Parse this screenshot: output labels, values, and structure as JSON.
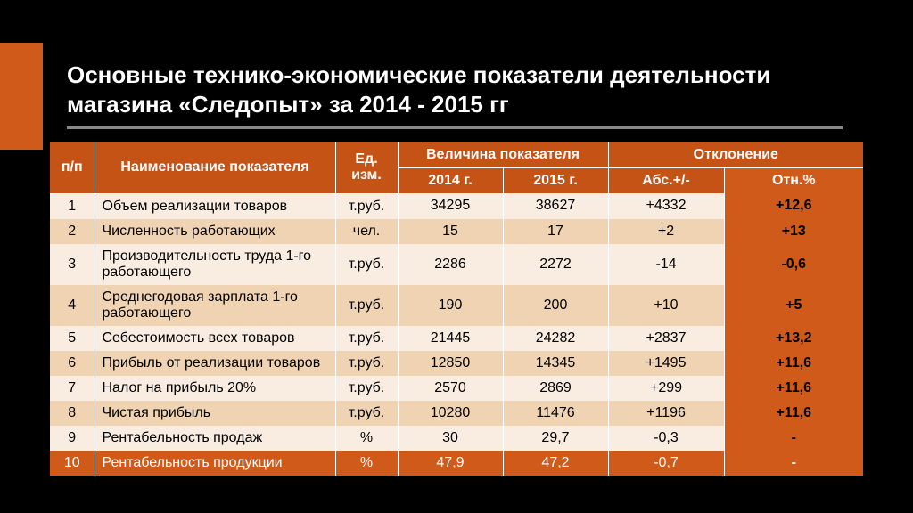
{
  "title": "Основные технико-экономические показатели деятельности магазина «Следопыт» за  2014 - 2015 гг",
  "header": {
    "pp": "п/п",
    "name": "Наименование показателя",
    "unit": "Ед. изм.",
    "value_group": "Величина показателя",
    "deviation_group": "Отклонение",
    "year1": "2014 г.",
    "year2": "2015 г.",
    "abs": "Абс.+/-",
    "otn": "Отн.%"
  },
  "rows": [
    {
      "pp": "1",
      "name": "Объем реализации товаров",
      "unit": "т.руб.",
      "y1": "34295",
      "y2": "38627",
      "abs": "+4332",
      "otn": "+12,6",
      "stripe": "light"
    },
    {
      "pp": "2",
      "name": "Численность работающих",
      "unit": "чел.",
      "y1": "15",
      "y2": "17",
      "abs": "+2",
      "otn": "+13",
      "stripe": "dark"
    },
    {
      "pp": "3",
      "name": "Производительность труда 1-го работающего",
      "unit": "т.руб.",
      "y1": "2286",
      "y2": "2272",
      "abs": "-14",
      "otn": "-0,6",
      "stripe": "light"
    },
    {
      "pp": "4",
      "name": "Среднегодовая зарплата 1-го работающего",
      "unit": "т.руб.",
      "y1": "190",
      "y2": "200",
      "abs": "+10",
      "otn": "+5",
      "stripe": "dark"
    },
    {
      "pp": "5",
      "name": "Себестоимость всех товаров",
      "unit": "т.руб.",
      "y1": "21445",
      "y2": "24282",
      "abs": "+2837",
      "otn": "+13,2",
      "stripe": "light"
    },
    {
      "pp": "6",
      "name": "Прибыль от реализации товаров",
      "unit": "т.руб.",
      "y1": "12850",
      "y2": "14345",
      "abs": "+1495",
      "otn": "+11,6",
      "stripe": "dark"
    },
    {
      "pp": "7",
      "name": "Налог на прибыль 20%",
      "unit": "т.руб.",
      "y1": "2570",
      "y2": "2869",
      "abs": "+299",
      "otn": "+11,6",
      "stripe": "light"
    },
    {
      "pp": "8",
      "name": "Чистая прибыль",
      "unit": "т.руб.",
      "y1": "10280",
      "y2": "11476",
      "abs": "+1196",
      "otn": "+11,6",
      "stripe": "dark"
    },
    {
      "pp": "9",
      "name": "Рентабельность продаж",
      "unit": "%",
      "y1": "30",
      "y2": "29,7",
      "abs": "-0,3",
      "otn": "-",
      "stripe": "light"
    },
    {
      "pp": "10",
      "name": "Рентабельность продукции",
      "unit": "%",
      "y1": "47,9",
      "y2": "47,2",
      "abs": "-0,7",
      "otn": "-",
      "stripe": "full"
    }
  ],
  "colors": {
    "bg": "#000000",
    "accent": "#d05a1a",
    "header_bg": "#c55316",
    "row_light": "#f9ece0",
    "row_dark": "#f0d3b3",
    "text_light": "#ffffff",
    "text_dark": "#000000",
    "underline": "#888888"
  }
}
